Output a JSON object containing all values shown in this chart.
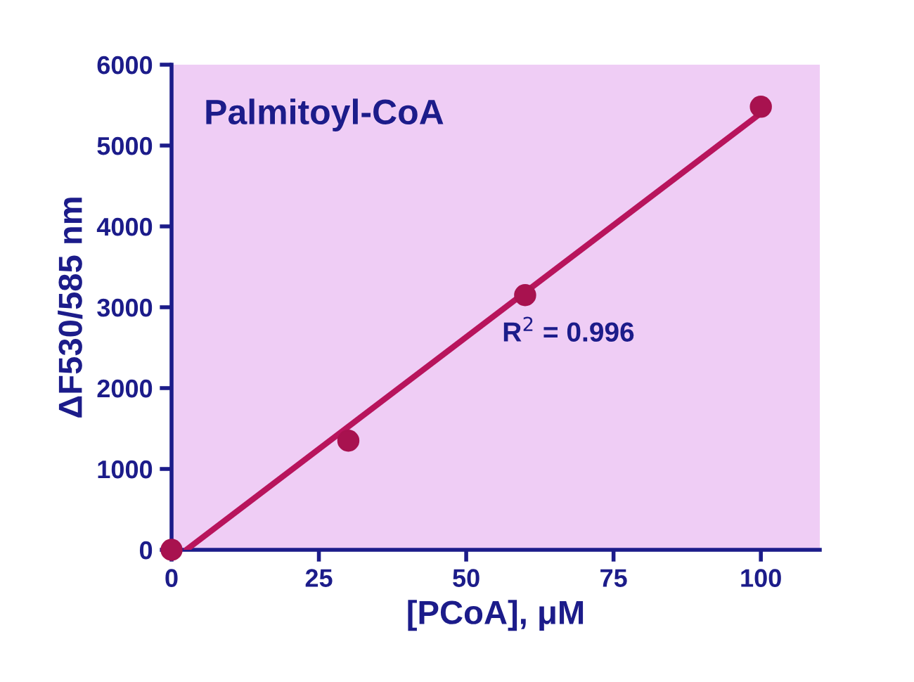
{
  "chart_data": {
    "type": "scatter",
    "xlabel": "[PCoA], μM",
    "ylabel": "ΔF530/585 nm",
    "annotations": [
      "Palmitoyl-CoA",
      "R$^{2}$ = 0.996"
    ],
    "series": [
      {
        "color": "#a8124f",
        "x": [
          0,
          30,
          60,
          100
        ],
        "values": [
          0,
          1350,
          3150,
          5480
        ],
        "marker": "circle"
      },
      {
        "type": "line",
        "color": "#b8145c",
        "x": [
          2.5,
          100
        ],
        "values": [
          0,
          5400
        ],
        "marker": "none",
        "line_style": "solid"
      }
    ],
    "xlim": [
      0,
      110
    ],
    "xticks": [
      0,
      25,
      50,
      75,
      100
    ],
    "ylim": [
      0,
      6000
    ],
    "yticks": [
      0,
      1000,
      2000,
      3000,
      4000,
      5000,
      6000
    ],
    "grid": false,
    "legend": false
  }
}
